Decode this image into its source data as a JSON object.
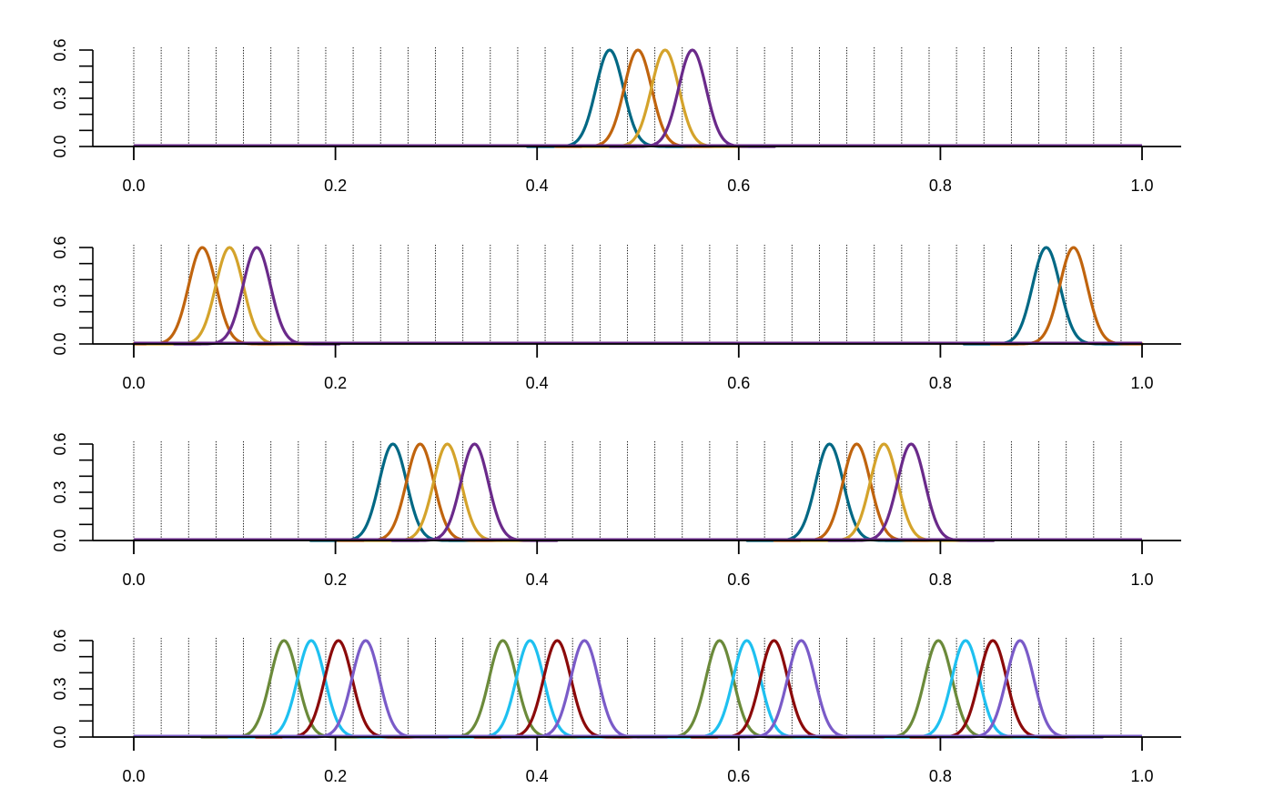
{
  "chart_data": [
    {
      "type": "line",
      "xlim": [
        0,
        1
      ],
      "ylim": [
        0,
        0.6
      ],
      "x_ticks": [
        "0.0",
        "0.2",
        "0.4",
        "0.6",
        "0.8",
        "1.0"
      ],
      "y_ticks": [
        "0.0",
        "0.3",
        "0.6"
      ],
      "y_minor_ticks": [
        0.1,
        0.2,
        0.4,
        0.5
      ],
      "vertical_gridlines": "dotted, every 0.0272 from 0.0 to 1.0",
      "curve_shape": "gaussian bump, peak 0.6, sigma 0.0136",
      "series": [
        {
          "color": "#006884",
          "peaks": [
            0.472
          ]
        },
        {
          "color": "#c0640e",
          "peaks": [
            0.5
          ]
        },
        {
          "color": "#d4a32b",
          "peaks": [
            0.527
          ]
        },
        {
          "color": "#6a2a8a",
          "peaks": [
            0.554
          ]
        }
      ]
    },
    {
      "type": "line",
      "xlim": [
        0,
        1
      ],
      "ylim": [
        0,
        0.6
      ],
      "x_ticks": [
        "0.0",
        "0.2",
        "0.4",
        "0.6",
        "0.8",
        "1.0"
      ],
      "y_ticks": [
        "0.0",
        "0.3",
        "0.6"
      ],
      "y_minor_ticks": [
        0.1,
        0.2,
        0.4,
        0.5
      ],
      "vertical_gridlines": "dotted, every 0.0272 from 0.0 to 1.0",
      "curve_shape": "gaussian bump, peak 0.6, sigma 0.0136",
      "series": [
        {
          "color": "#006884",
          "peaks": [
            0.905
          ]
        },
        {
          "color": "#c0640e",
          "peaks": [
            0.068,
            0.932
          ]
        },
        {
          "color": "#d4a32b",
          "peaks": [
            0.095
          ]
        },
        {
          "color": "#6a2a8a",
          "peaks": [
            0.122
          ]
        }
      ]
    },
    {
      "type": "line",
      "xlim": [
        0,
        1
      ],
      "ylim": [
        0,
        0.6
      ],
      "x_ticks": [
        "0.0",
        "0.2",
        "0.4",
        "0.6",
        "0.8",
        "1.0"
      ],
      "y_ticks": [
        "0.0",
        "0.3",
        "0.6"
      ],
      "y_minor_ticks": [
        0.1,
        0.2,
        0.4,
        0.5
      ],
      "vertical_gridlines": "dotted, every 0.0272 from 0.0 to 1.0",
      "curve_shape": "gaussian bump, peak 0.6, sigma 0.0136",
      "series": [
        {
          "color": "#006884",
          "peaks": [
            0.257,
            0.69
          ]
        },
        {
          "color": "#c0640e",
          "peaks": [
            0.284,
            0.717
          ]
        },
        {
          "color": "#d4a32b",
          "peaks": [
            0.311,
            0.744
          ]
        },
        {
          "color": "#6a2a8a",
          "peaks": [
            0.338,
            0.771
          ]
        }
      ]
    },
    {
      "type": "line",
      "xlim": [
        0,
        1
      ],
      "ylim": [
        0,
        0.6
      ],
      "x_ticks": [
        "0.0",
        "0.2",
        "0.4",
        "0.6",
        "0.8",
        "1.0"
      ],
      "y_ticks": [
        "0.0",
        "0.3",
        "0.6"
      ],
      "y_minor_ticks": [
        0.1,
        0.2,
        0.4,
        0.5
      ],
      "vertical_gridlines": "dotted, every 0.0272 from 0.0 to 1.0",
      "curve_shape": "gaussian bump, peak 0.6, sigma 0.0136",
      "series": [
        {
          "color": "#6b8a3a",
          "peaks": [
            0.149,
            0.366,
            0.581,
            0.798
          ]
        },
        {
          "color": "#1ec0f0",
          "peaks": [
            0.176,
            0.393,
            0.608,
            0.825
          ]
        },
        {
          "color": "#8b0a0a",
          "peaks": [
            0.203,
            0.42,
            0.635,
            0.852
          ]
        },
        {
          "color": "#7a5bc8",
          "peaks": [
            0.23,
            0.447,
            0.662,
            0.879
          ]
        }
      ]
    }
  ]
}
